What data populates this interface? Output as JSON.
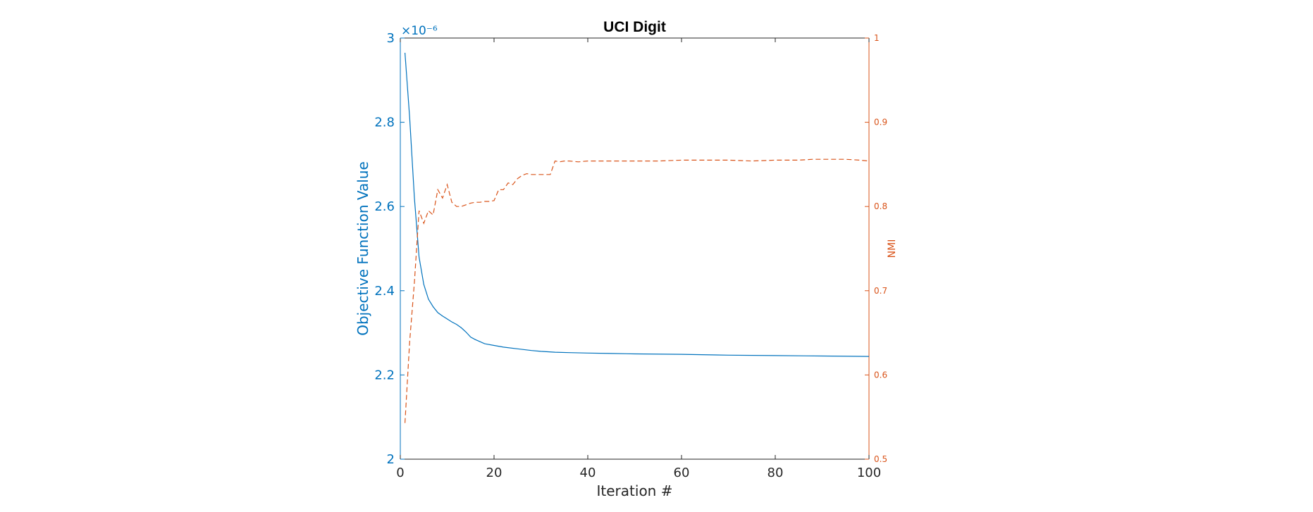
{
  "chart_data": {
    "type": "line",
    "title": "UCI Digit",
    "xlabel": "Iteration #",
    "ylabel_left": "Objective Function Value",
    "ylabel_right": "NMI",
    "left_axis_exponent": "×10⁻⁶",
    "xlim": [
      0,
      100
    ],
    "ylim_left": [
      2,
      3
    ],
    "ylim_right": [
      0.5,
      1
    ],
    "x_ticks": [
      "0",
      "20",
      "40",
      "60",
      "80",
      "100"
    ],
    "y_left_ticks": [
      "2",
      "2.2",
      "2.4",
      "2.6",
      "2.8",
      "3"
    ],
    "y_right_ticks": [
      "0.5",
      "0.6",
      "0.7",
      "0.8",
      "0.9",
      "1"
    ],
    "colors": {
      "left": "#0072BD",
      "right": "#D95319"
    },
    "series": [
      {
        "axis": "left",
        "style": "solid",
        "x": [
          1,
          2,
          3,
          4,
          5,
          6,
          7,
          8,
          9,
          10,
          11,
          12,
          13,
          14,
          15,
          16,
          18,
          20,
          22,
          25,
          28,
          30,
          33,
          36,
          40,
          45,
          50,
          60,
          70,
          80,
          90,
          100
        ],
        "y": [
          2.965,
          2.81,
          2.62,
          2.48,
          2.415,
          2.38,
          2.362,
          2.348,
          2.34,
          2.333,
          2.326,
          2.32,
          2.312,
          2.302,
          2.29,
          2.284,
          2.274,
          2.27,
          2.266,
          2.262,
          2.258,
          2.256,
          2.254,
          2.253,
          2.252,
          2.251,
          2.25,
          2.249,
          2.247,
          2.246,
          2.245,
          2.244
        ]
      },
      {
        "axis": "right",
        "style": "dashed",
        "x": [
          1,
          2,
          3,
          4,
          5,
          6,
          7,
          8,
          9,
          10,
          11,
          12,
          13,
          14,
          15,
          16,
          17,
          18,
          19,
          20,
          21,
          22,
          23,
          24,
          25,
          26,
          27,
          28,
          29,
          30,
          31,
          32,
          33,
          34,
          35,
          36,
          38,
          40,
          45,
          50,
          55,
          60,
          65,
          70,
          75,
          80,
          85,
          88,
          90,
          95,
          98,
          100
        ],
        "y": [
          0.543,
          0.64,
          0.71,
          0.795,
          0.78,
          0.795,
          0.79,
          0.82,
          0.81,
          0.826,
          0.805,
          0.8,
          0.8,
          0.802,
          0.804,
          0.805,
          0.805,
          0.806,
          0.806,
          0.807,
          0.82,
          0.82,
          0.828,
          0.826,
          0.833,
          0.837,
          0.839,
          0.838,
          0.838,
          0.838,
          0.838,
          0.838,
          0.854,
          0.853,
          0.854,
          0.854,
          0.853,
          0.854,
          0.854,
          0.854,
          0.854,
          0.855,
          0.855,
          0.855,
          0.854,
          0.855,
          0.855,
          0.856,
          0.856,
          0.856,
          0.855,
          0.854
        ]
      }
    ]
  }
}
